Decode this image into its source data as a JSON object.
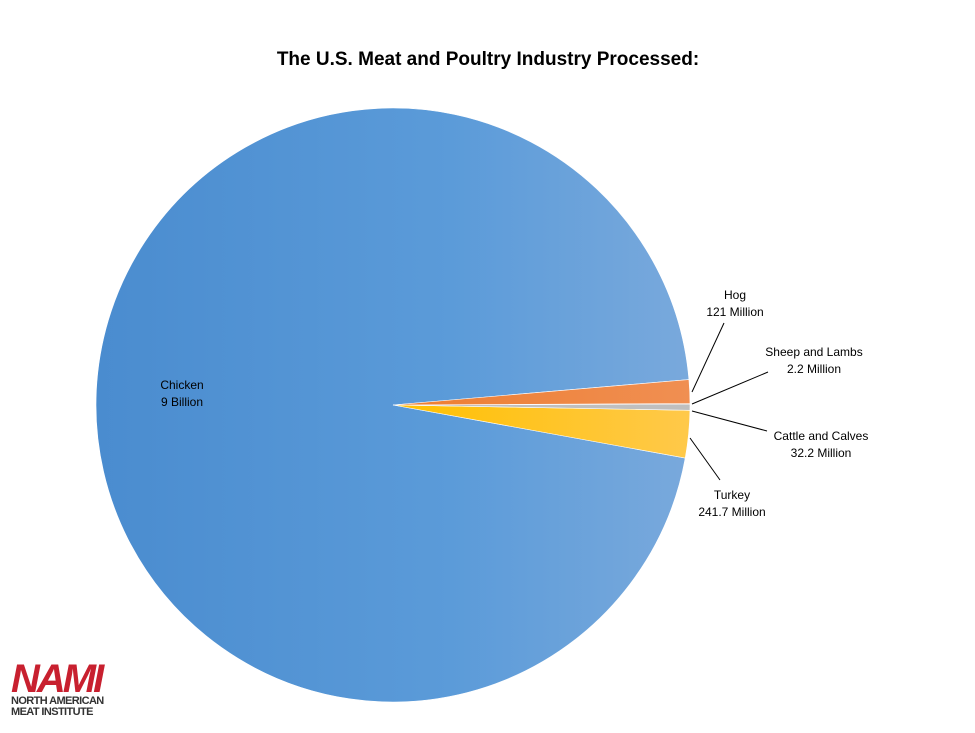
{
  "chart_data": {
    "type": "pie",
    "title": "The U.S. Meat and Poultry Industry Processed:",
    "units": "head",
    "slices": [
      {
        "name": "Chicken",
        "value": 9000,
        "value_label": "9 Billion",
        "color": "#5b9bd5"
      },
      {
        "name": "Hog",
        "value": 121,
        "value_label": "121 Million",
        "color": "#ed7d31"
      },
      {
        "name": "Sheep and Lambs",
        "value": 2.2,
        "value_label": "2.2 Million",
        "color": "#a5a5a5"
      },
      {
        "name": "Cattle and Calves",
        "value": 32.2,
        "value_label": "32.2 Million",
        "color": "#bfbfbf"
      },
      {
        "name": "Turkey",
        "value": 241.7,
        "value_label": "241.7 Million",
        "color": "#ffc000"
      }
    ],
    "value_scale_note": "values in millions of head",
    "legend": "none"
  },
  "logo": {
    "mark": "NAMI",
    "line1": "NORTH AMERICAN",
    "line2": "MEAT INSTITUTE",
    "color": "#c8202f"
  }
}
